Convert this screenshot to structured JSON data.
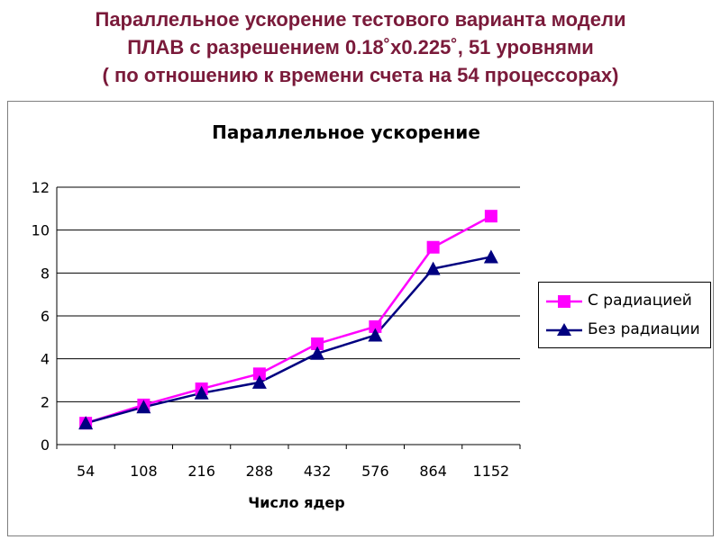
{
  "slide": {
    "title_lines": [
      "Параллельное ускорение тестового варианта модели",
      "ПЛАВ с разрешением 0.18˚x0.225˚, 51 уровнями",
      "( по отношению к времени счета на 54 процессорах)"
    ]
  },
  "chart_data": {
    "type": "line",
    "title": "Параллельное ускорение",
    "xlabel": "Число ядер",
    "ylabel": "",
    "categories": [
      "54",
      "108",
      "216",
      "288",
      "432",
      "576",
      "864",
      "1152"
    ],
    "ylim": [
      0,
      12
    ],
    "yticks": [
      0,
      2,
      4,
      6,
      8,
      10,
      12
    ],
    "grid": "horizontal",
    "legend_position": "right",
    "series": [
      {
        "name": "С радиацией",
        "values": [
          1.0,
          1.85,
          2.6,
          3.3,
          4.7,
          5.5,
          9.2,
          10.65
        ],
        "color": "#ff00ff",
        "marker": "square"
      },
      {
        "name": "Без радиации",
        "values": [
          1.0,
          1.75,
          2.4,
          2.9,
          4.25,
          5.1,
          8.2,
          8.75
        ],
        "color": "#000080",
        "marker": "triangle"
      }
    ]
  }
}
